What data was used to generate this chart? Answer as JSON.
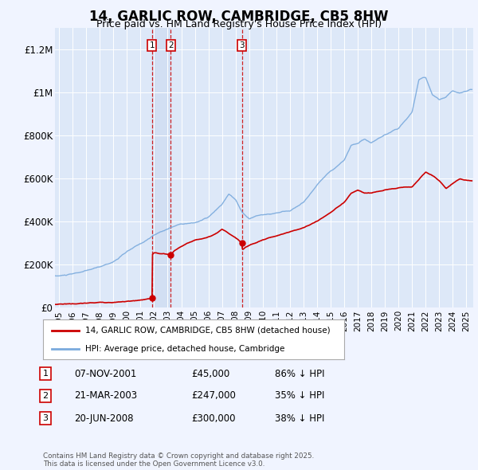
{
  "title": "14, GARLIC ROW, CAMBRIDGE, CB5 8HW",
  "subtitle": "Price paid vs. HM Land Registry's House Price Index (HPI)",
  "bg_color": "#f0f4ff",
  "plot_bg_color": "#dde8f8",
  "hpi_color": "#7aaadd",
  "price_color": "#cc0000",
  "vline_color": "#cc0000",
  "ylabel_ticks": [
    "£0",
    "£200K",
    "£400K",
    "£600K",
    "£800K",
    "£1M",
    "£1.2M"
  ],
  "ylabel_values": [
    0,
    200000,
    400000,
    600000,
    800000,
    1000000,
    1200000
  ],
  "ylim": [
    0,
    1300000
  ],
  "xlim_start": 1994.7,
  "xlim_end": 2025.5,
  "transactions": [
    {
      "label": "1",
      "date": 2001.85,
      "price": 45000,
      "note": "07-NOV-2001",
      "price_str": "£45,000",
      "hpi_note": "86% ↓ HPI"
    },
    {
      "label": "2",
      "date": 2003.22,
      "price": 247000,
      "note": "21-MAR-2003",
      "price_str": "£247,000",
      "hpi_note": "35% ↓ HPI"
    },
    {
      "label": "3",
      "date": 2008.47,
      "price": 300000,
      "note": "20-JUN-2008",
      "price_str": "£300,000",
      "hpi_note": "38% ↓ HPI"
    }
  ],
  "legend_label_price": "14, GARLIC ROW, CAMBRIDGE, CB5 8HW (detached house)",
  "legend_label_hpi": "HPI: Average price, detached house, Cambridge",
  "footer": "Contains HM Land Registry data © Crown copyright and database right 2025.\nThis data is licensed under the Open Government Licence v3.0.",
  "xtick_years": [
    1995,
    1996,
    1997,
    1998,
    1999,
    2000,
    2001,
    2002,
    2003,
    2004,
    2005,
    2006,
    2007,
    2008,
    2009,
    2010,
    2011,
    2012,
    2013,
    2014,
    2015,
    2016,
    2017,
    2018,
    2019,
    2020,
    2021,
    2022,
    2023,
    2024,
    2025
  ],
  "hpi_key_points": [
    [
      1995.0,
      148000
    ],
    [
      1996.0,
      155000
    ],
    [
      1997.0,
      168000
    ],
    [
      1998.0,
      185000
    ],
    [
      1999.0,
      210000
    ],
    [
      2000.0,
      255000
    ],
    [
      2001.0,
      290000
    ],
    [
      2002.0,
      330000
    ],
    [
      2003.0,
      360000
    ],
    [
      2004.0,
      385000
    ],
    [
      2005.0,
      390000
    ],
    [
      2006.0,
      415000
    ],
    [
      2007.0,
      470000
    ],
    [
      2007.5,
      520000
    ],
    [
      2008.0,
      490000
    ],
    [
      2008.5,
      430000
    ],
    [
      2009.0,
      400000
    ],
    [
      2009.5,
      415000
    ],
    [
      2010.0,
      420000
    ],
    [
      2011.0,
      430000
    ],
    [
      2012.0,
      440000
    ],
    [
      2013.0,
      480000
    ],
    [
      2014.0,
      560000
    ],
    [
      2015.0,
      630000
    ],
    [
      2016.0,
      680000
    ],
    [
      2016.5,
      750000
    ],
    [
      2017.0,
      760000
    ],
    [
      2017.5,
      780000
    ],
    [
      2018.0,
      760000
    ],
    [
      2019.0,
      790000
    ],
    [
      2020.0,
      820000
    ],
    [
      2021.0,
      900000
    ],
    [
      2021.5,
      1050000
    ],
    [
      2022.0,
      1060000
    ],
    [
      2022.5,
      980000
    ],
    [
      2023.0,
      960000
    ],
    [
      2023.5,
      970000
    ],
    [
      2024.0,
      1000000
    ],
    [
      2024.5,
      990000
    ],
    [
      2025.3,
      1010000
    ]
  ],
  "pp_key_points": [
    [
      1994.7,
      15000
    ],
    [
      1995.0,
      18000
    ],
    [
      1996.0,
      20000
    ],
    [
      1997.0,
      22000
    ],
    [
      1998.0,
      25000
    ],
    [
      1999.0,
      28000
    ],
    [
      2000.0,
      32000
    ],
    [
      2001.0,
      35000
    ],
    [
      2001.84,
      42000
    ],
    [
      2001.85,
      45000
    ],
    [
      2001.86,
      247000
    ],
    [
      2002.0,
      255000
    ],
    [
      2002.5,
      250000
    ],
    [
      2003.22,
      247000
    ],
    [
      2003.5,
      265000
    ],
    [
      2004.0,
      285000
    ],
    [
      2004.5,
      300000
    ],
    [
      2005.0,
      315000
    ],
    [
      2005.5,
      320000
    ],
    [
      2006.0,
      330000
    ],
    [
      2006.5,
      340000
    ],
    [
      2007.0,
      360000
    ],
    [
      2007.5,
      340000
    ],
    [
      2008.47,
      300000
    ],
    [
      2008.5,
      270000
    ],
    [
      2009.0,
      285000
    ],
    [
      2010.0,
      310000
    ],
    [
      2011.0,
      330000
    ],
    [
      2012.0,
      350000
    ],
    [
      2013.0,
      370000
    ],
    [
      2014.0,
      400000
    ],
    [
      2015.0,
      440000
    ],
    [
      2016.0,
      490000
    ],
    [
      2016.5,
      530000
    ],
    [
      2017.0,
      545000
    ],
    [
      2017.5,
      530000
    ],
    [
      2018.0,
      530000
    ],
    [
      2019.0,
      545000
    ],
    [
      2020.0,
      555000
    ],
    [
      2021.0,
      560000
    ],
    [
      2022.0,
      630000
    ],
    [
      2022.5,
      615000
    ],
    [
      2023.0,
      590000
    ],
    [
      2023.5,
      555000
    ],
    [
      2024.0,
      580000
    ],
    [
      2024.5,
      600000
    ],
    [
      2025.3,
      595000
    ]
  ]
}
